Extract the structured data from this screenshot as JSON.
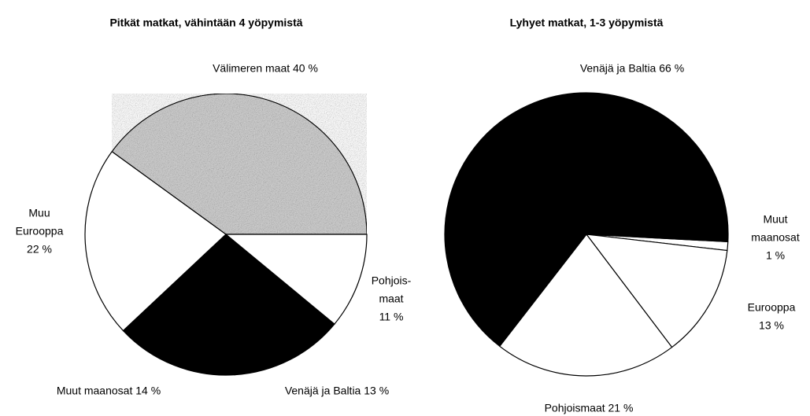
{
  "chart_data": [
    {
      "type": "pie",
      "title": "Pitkät matkat, vähintään 4 yöpymistä",
      "labels": [
        [
          "Välimeren maat 40 %"
        ],
        [
          "Muu",
          "Eurooppa",
          "22 %"
        ],
        [
          "Muut maanosat 14 %"
        ],
        [
          "Venäjä ja Baltia 13 %"
        ],
        [
          "Pohjois-",
          "maat",
          "11 %"
        ]
      ],
      "values": [
        40,
        22,
        14,
        13,
        11
      ],
      "colors": [
        "#cfcfcf",
        "#ffffff",
        "#000000",
        "#000000",
        "#ffffff"
      ]
    },
    {
      "type": "pie",
      "title": "Lyhyet matkat, 1-3 yöpymistä",
      "labels": [
        [
          "Muut",
          "maanosat",
          "1 %"
        ],
        [
          "Eurooppa",
          "13 %"
        ],
        [
          "Pohjoismaat 21 %"
        ],
        [
          "Venäjä ja Baltia 66 %"
        ]
      ],
      "values": [
        1,
        13,
        21,
        66
      ],
      "colors": [
        "#ffffff",
        "#ffffff",
        "#ffffff",
        "#000000"
      ]
    }
  ]
}
